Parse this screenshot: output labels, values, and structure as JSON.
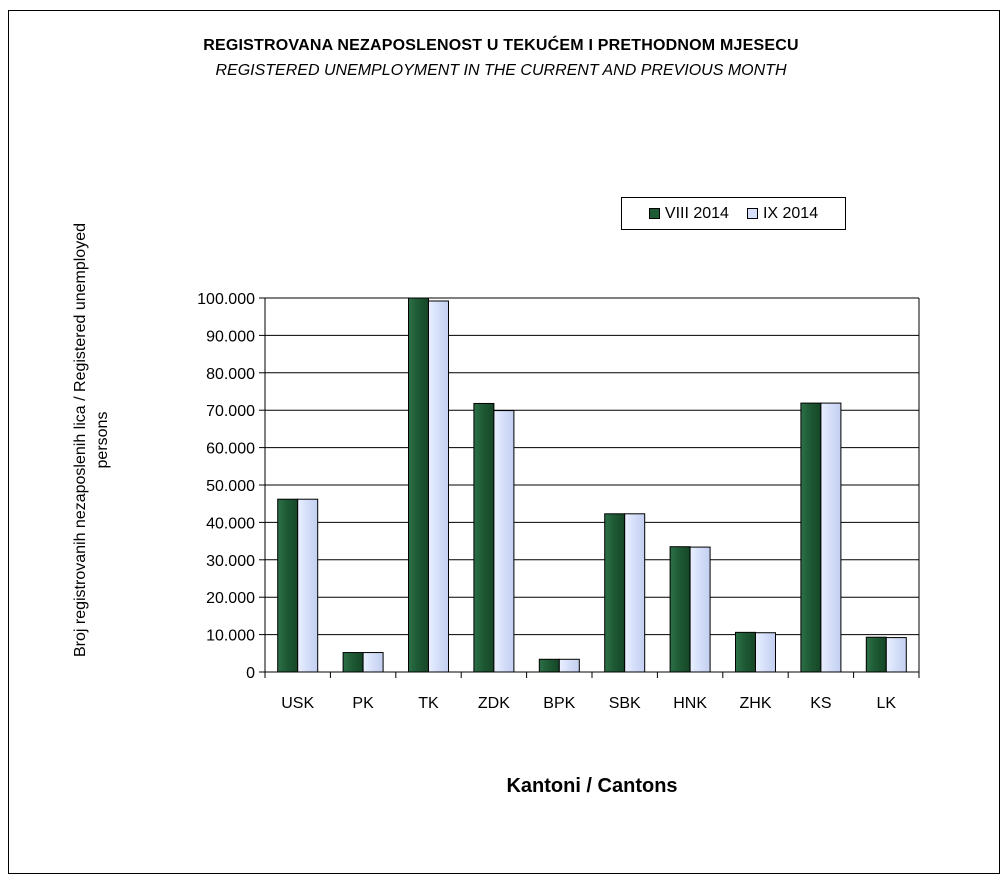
{
  "chart_data": {
    "type": "bar",
    "title": "REGISTROVANA NEZAPOSLENOST U TEKUĆEM I PRETHODNOM   MJESECU",
    "subtitle": "REGISTERED UNEMPLOYMENT IN THE CURRENT AND PREVIOUS MONTH",
    "xlabel": "Kantoni / Cantons",
    "ylabel": "Broj registrovanih nezaposlenih lica / Registered unemployed persons",
    "categories": [
      "USK",
      "PK",
      "TK",
      "ZDK",
      "BPK",
      "SBK",
      "HNK",
      "ZHK",
      "KS",
      "LK"
    ],
    "series": [
      {
        "name": "VIII 2014",
        "values": [
          46200,
          5200,
          100000,
          71800,
          3400,
          42300,
          33500,
          10600,
          71900,
          9300
        ]
      },
      {
        "name": "IX 2014",
        "values": [
          46200,
          5200,
          99200,
          69900,
          3400,
          42300,
          33400,
          10500,
          71900,
          9200
        ]
      }
    ],
    "ylim": [
      0,
      100000
    ],
    "yticks": [
      0,
      10000,
      20000,
      30000,
      40000,
      50000,
      60000,
      70000,
      80000,
      90000,
      100000
    ],
    "ytick_labels": [
      "0",
      "10.000",
      "20.000",
      "30.000",
      "40.000",
      "50.000",
      "60.000",
      "70.000",
      "80.000",
      "90.000",
      "100.000"
    ],
    "grid": true,
    "legend_position": "top-right",
    "colors": {
      "series_0": "#1e5a34",
      "series_1": "#d6e0fa",
      "grid": "#000000"
    }
  }
}
